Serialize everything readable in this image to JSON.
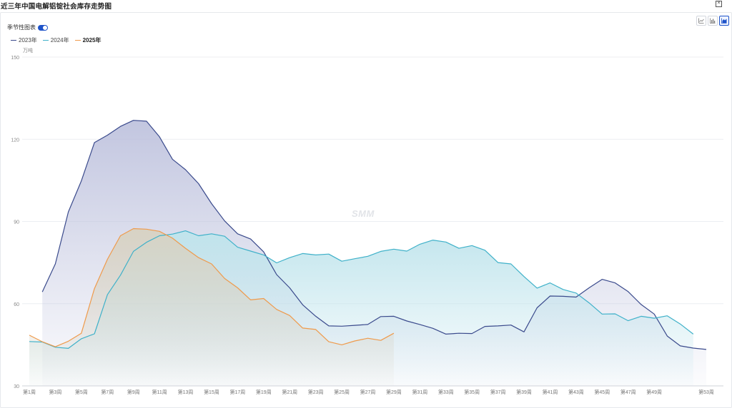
{
  "title": "近三年中国电解铝锭社会库存走势图",
  "close_label": "×",
  "toggle": {
    "label": "季节性图表",
    "on": true
  },
  "view_buttons": [
    {
      "icon": "line-chart-icon",
      "active": false
    },
    {
      "icon": "bar-chart-icon",
      "active": false
    },
    {
      "icon": "area-chart-icon",
      "active": true
    }
  ],
  "watermark": "SMM",
  "chart_data": {
    "type": "area",
    "unit": "万吨",
    "ylim": [
      30,
      150
    ],
    "yticks": [
      30,
      60,
      90,
      120,
      150
    ],
    "grid": true,
    "legend_position": "top-left",
    "x": [
      "第1周",
      "第2周",
      "第3周",
      "第4周",
      "第5周",
      "第6周",
      "第7周",
      "第8周",
      "第9周",
      "第10周",
      "第11周",
      "第12周",
      "第13周",
      "第14周",
      "第15周",
      "第16周",
      "第17周",
      "第18周",
      "第19周",
      "第20周",
      "第21周",
      "第22周",
      "第23周",
      "第24周",
      "第25周",
      "第26周",
      "第27周",
      "第28周",
      "第29周",
      "第30周",
      "第31周",
      "第32周",
      "第33周",
      "第34周",
      "第35周",
      "第36周",
      "第37周",
      "第38周",
      "第39周",
      "第40周",
      "第41周",
      "第42周",
      "第43周",
      "第44周",
      "第45周",
      "第46周",
      "第47周",
      "第48周",
      "第49周",
      "第50周",
      "第51周",
      "第52周",
      "第53周"
    ],
    "x_tick_labels": [
      "第1周",
      "第3周",
      "第5周",
      "第7周",
      "第9周",
      "第11周",
      "第13周",
      "第15周",
      "第17周",
      "第19周",
      "第21周",
      "第23周",
      "第25周",
      "第27周",
      "第29周",
      "第31周",
      "第33周",
      "第35周",
      "第37周",
      "第39周",
      "第41周",
      "第43周",
      "第45周",
      "第47周",
      "第49周",
      "第53周"
    ],
    "series": [
      {
        "name": "2023年",
        "color": "#3a4a8c",
        "fill": "#bfc3de",
        "values": [
          null,
          64.3,
          74.5,
          93.5,
          104.8,
          118.8,
          121.5,
          124.7,
          126.9,
          126.6,
          120.9,
          112.7,
          108.9,
          103.8,
          96.5,
          90.2,
          85.5,
          83.6,
          78.9,
          70.6,
          65.8,
          59.6,
          55.4,
          51.9,
          51.8,
          52.1,
          52.4,
          55.3,
          55.4,
          53.7,
          52.4,
          51.0,
          48.9,
          49.2,
          49.1,
          51.7,
          51.9,
          52.2,
          49.7,
          58.5,
          62.8,
          62.7,
          62.4,
          65.8,
          68.9,
          67.6,
          64.4,
          59.7,
          56.2,
          48.2,
          44.6,
          43.8,
          43.3
        ]
      },
      {
        "name": "2024年",
        "color": "#3fb1c9",
        "fill": "#bfe4ec",
        "values": [
          46.2,
          46.0,
          44.1,
          43.7,
          47.2,
          49.0,
          63.3,
          70.4,
          79.1,
          82.4,
          84.8,
          85.4,
          86.6,
          84.8,
          85.5,
          84.6,
          80.6,
          79.2,
          77.8,
          74.9,
          76.8,
          78.3,
          77.8,
          78.1,
          75.5,
          76.4,
          77.3,
          79.1,
          79.9,
          79.2,
          81.7,
          83.2,
          82.5,
          80.2,
          81.2,
          79.5,
          75.0,
          74.5,
          69.9,
          65.7,
          67.6,
          65.2,
          63.9,
          60.3,
          56.2,
          56.3,
          53.8,
          55.4,
          54.7,
          55.6,
          52.6,
          48.9,
          null
        ]
      },
      {
        "name": "2025年",
        "color": "#ef9a4b",
        "fill": "#d8d2c2",
        "values": [
          48.5,
          46.1,
          44.3,
          46.3,
          49.2,
          65.5,
          76.2,
          84.8,
          87.4,
          87.2,
          86.4,
          83.9,
          80.2,
          76.8,
          74.5,
          69.2,
          65.8,
          61.4,
          61.9,
          57.9,
          55.7,
          51.1,
          50.6,
          46.1,
          45.0,
          46.4,
          47.4,
          46.6,
          49.2,
          null,
          null,
          null,
          null,
          null,
          null,
          null,
          null,
          null,
          null,
          null,
          null,
          null,
          null,
          null,
          null,
          null,
          null,
          null,
          null,
          null,
          null,
          null,
          null
        ]
      }
    ]
  }
}
